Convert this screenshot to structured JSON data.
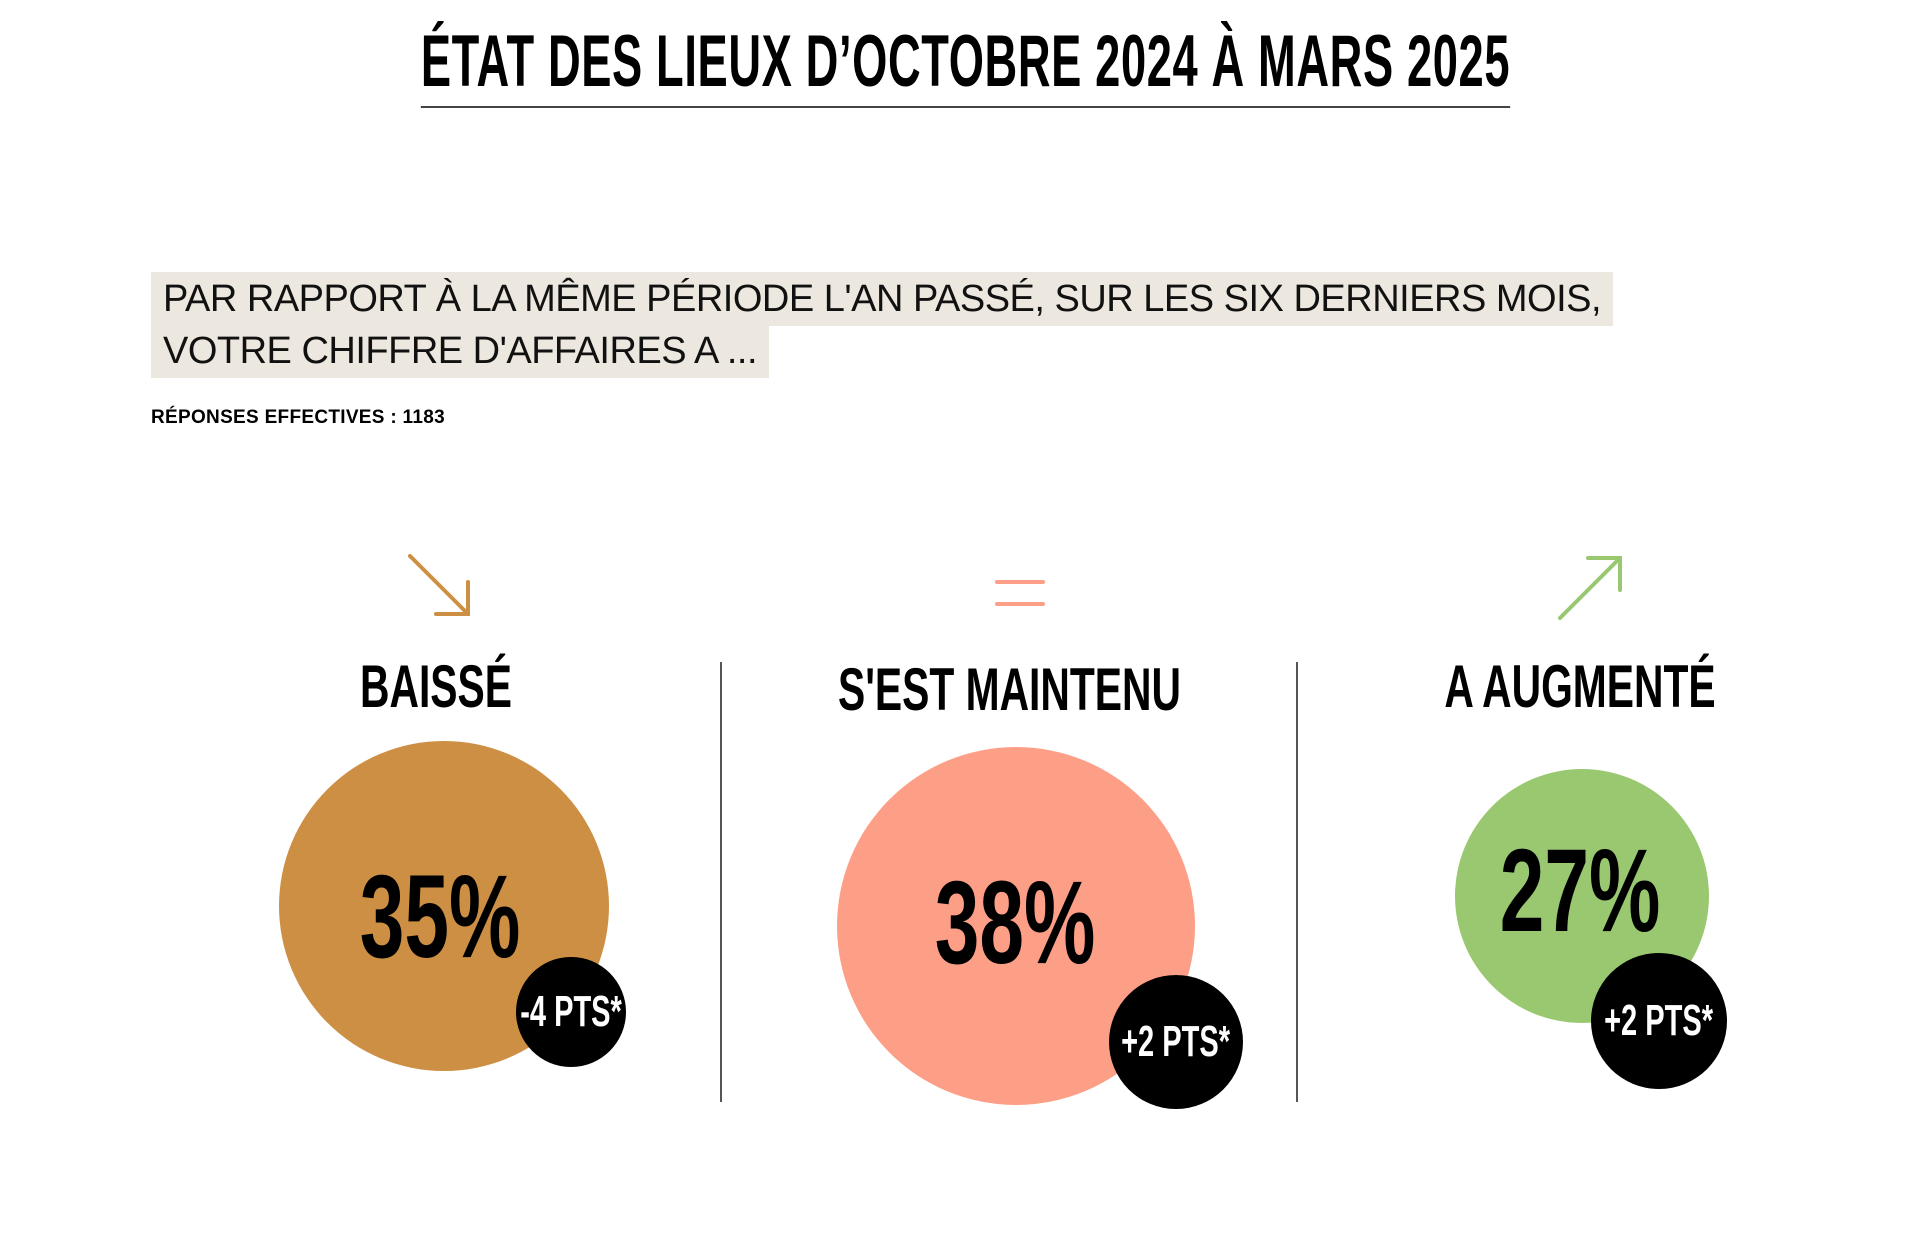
{
  "title": "ÉTAT DES LIEUX D’OCTOBRE 2024 À MARS 2025",
  "question": {
    "line1": "PAR RAPPORT À LA MÊME PÉRIODE L'AN PASSÉ, SUR LES SIX DERNIERS MOIS,",
    "line2": "VOTRE CHIFFRE D'AFFAIRES A ..."
  },
  "responses": "RÉPONSES EFFECTIVES : 1183",
  "colors": {
    "baisse": "#cd8f43",
    "maintenu": "#fd9e87",
    "augmente": "#99c870",
    "delta_bg": "#000000",
    "question_bg": "#ede8df"
  },
  "chart_data": {
    "type": "bubble",
    "title": "ÉTAT DES LIEUX D’OCTOBRE 2024 À MARS 2025",
    "categories": [
      "BAISSÉ",
      "S'EST MAINTENU",
      "A AUGMENTÉ"
    ],
    "values": [
      35,
      38,
      27
    ],
    "value_labels": [
      "35%",
      "38%",
      "27%"
    ],
    "deltas": [
      -4,
      2,
      2
    ],
    "delta_labels": [
      "-4 PTS*",
      "+2 PTS*",
      "+2 PTS*"
    ],
    "icons": [
      "arrow-down-right-icon",
      "equals-icon",
      "arrow-up-right-icon"
    ],
    "unit": "%"
  }
}
